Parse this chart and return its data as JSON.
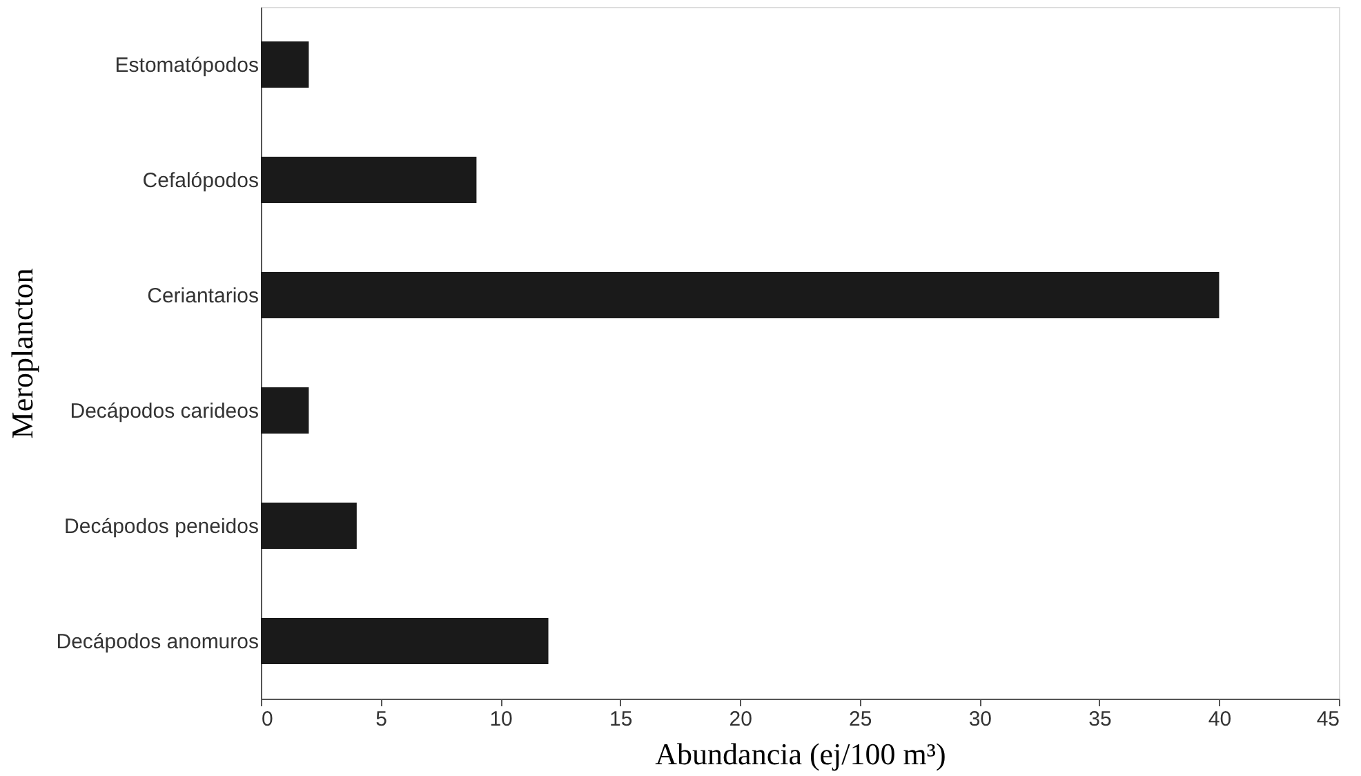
{
  "chart_data": {
    "type": "bar",
    "orientation": "horizontal",
    "xlabel": "Abundancia (ej/100 m³)",
    "ylabel": "Meroplancton",
    "categories": [
      "Estomatópodos",
      "Cefalópodos",
      "Ceriantarios",
      "Decápodos carideos",
      "Decápodos peneidos",
      "Decápodos anomuros"
    ],
    "values": [
      2,
      9,
      40,
      2,
      4,
      12
    ],
    "color": "#1a1a1a",
    "xlim": [
      0,
      45
    ],
    "xticks": [
      0,
      5,
      10,
      15,
      20,
      25,
      30,
      35,
      40,
      45
    ],
    "grid": false
  }
}
